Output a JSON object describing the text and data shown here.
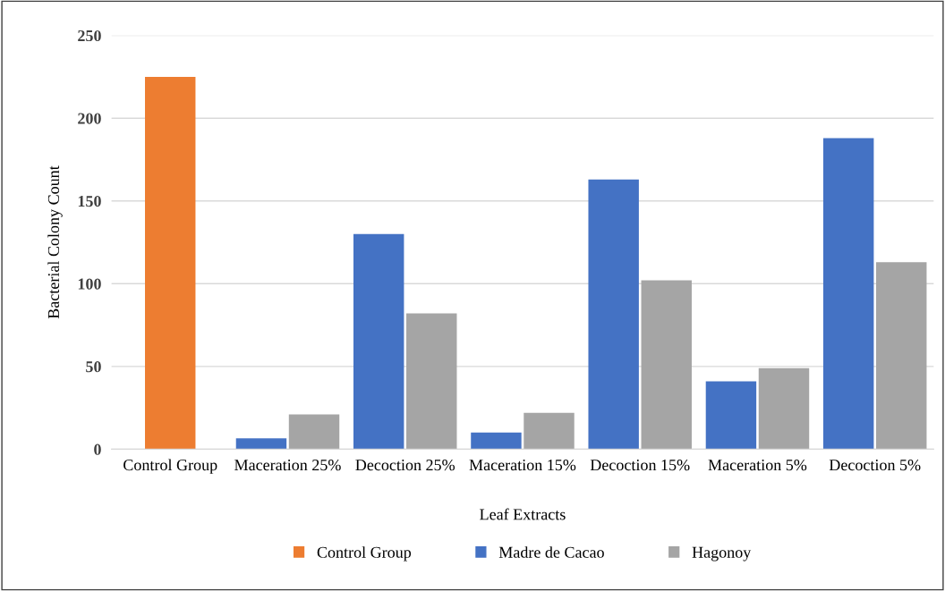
{
  "chart_data": {
    "type": "bar",
    "xlabel": "Leaf Extracts",
    "ylabel": "Bacterial Colony Count",
    "categories": [
      "Control Group",
      "Maceration 25%",
      "Decoction 25%",
      "Maceration 15%",
      "Decoction 15%",
      "Maceration 5%",
      "Decoction 5%"
    ],
    "series": [
      {
        "name": "Control Group",
        "color": "#ed7d31",
        "values": [
          225,
          null,
          null,
          null,
          null,
          null,
          null
        ]
      },
      {
        "name": "Madre de Cacao",
        "color": "#4472c4",
        "values": [
          null,
          6.5,
          130,
          10,
          163,
          41,
          188
        ]
      },
      {
        "name": "Hagonoy",
        "color": "#a5a5a5",
        "values": [
          null,
          21,
          82,
          22,
          102,
          49,
          113
        ]
      }
    ],
    "ylim": [
      0,
      250
    ],
    "yticks": [
      0,
      50,
      100,
      150,
      200,
      250
    ],
    "grid": "y",
    "legend": "bottom"
  }
}
